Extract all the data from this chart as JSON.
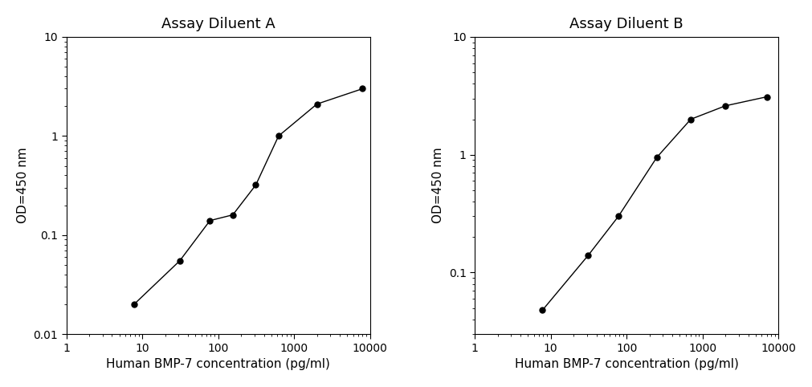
{
  "panel_A": {
    "title": "Assay Diluent A",
    "x": [
      7.8,
      31.2,
      78,
      156,
      313,
      625,
      2000,
      8000
    ],
    "y": [
      0.02,
      0.055,
      0.14,
      0.16,
      0.32,
      1.0,
      2.1,
      3.0
    ],
    "xlabel": "Human BMP-7 concentration (pg/ml)",
    "ylabel": "OD=450 nm",
    "xlim": [
      1,
      10000
    ],
    "ylim": [
      0.01,
      10
    ],
    "yticks": [
      0.01,
      0.1,
      1,
      10
    ],
    "ytick_labels": [
      "0.01",
      "0.1",
      "1",
      "10"
    ],
    "xticks": [
      1,
      10,
      100,
      1000,
      10000
    ],
    "xtick_labels": [
      "1",
      "10",
      "100",
      "1000",
      "10000"
    ]
  },
  "panel_B": {
    "title": "Assay Diluent B",
    "x": [
      7.8,
      31.2,
      78,
      250,
      700,
      2000,
      7000
    ],
    "y": [
      0.048,
      0.14,
      0.3,
      0.95,
      2.0,
      2.6,
      3.1
    ],
    "xlabel": "Human BMP-7 concentration (pg/ml)",
    "ylabel": "OD=450 nm",
    "xlim": [
      1,
      10000
    ],
    "ylim": [
      0.03,
      10
    ],
    "yticks": [
      0.1,
      1,
      10
    ],
    "ytick_labels": [
      "0.1",
      "1",
      "10"
    ],
    "xticks": [
      1,
      10,
      100,
      1000,
      10000
    ],
    "xtick_labels": [
      "1",
      "10",
      "100",
      "1000",
      "10000"
    ]
  },
  "line_color": "#000000",
  "marker": "o",
  "marker_size": 5,
  "marker_facecolor": "#000000",
  "title_fontsize": 13,
  "label_fontsize": 11,
  "tick_fontsize": 10,
  "background_color": "#ffffff",
  "show_top_spine": true,
  "show_right_spine": true
}
